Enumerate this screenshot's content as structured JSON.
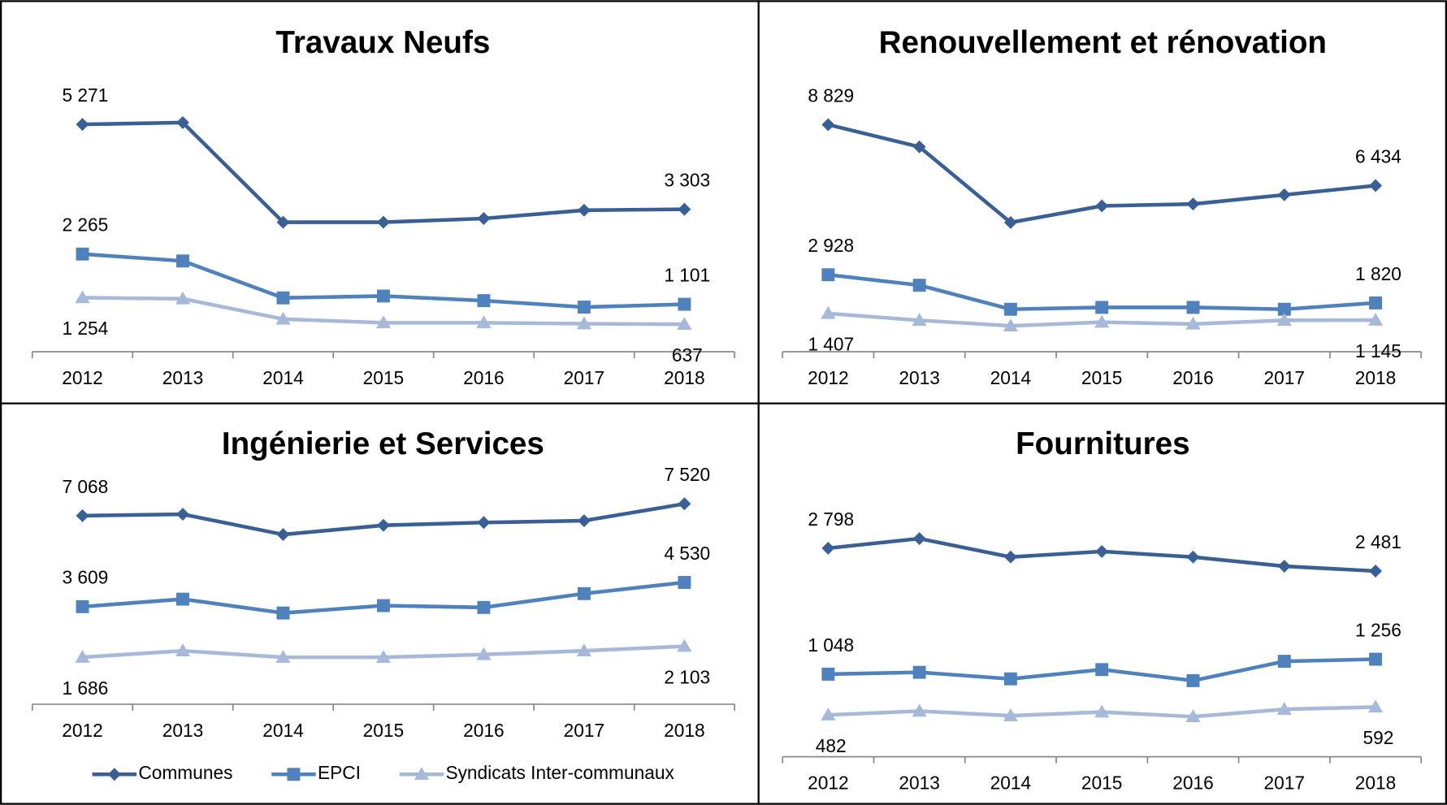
{
  "chart_data": [
    {
      "type": "line",
      "title": "Travaux Neufs",
      "categories": [
        "2012",
        "2013",
        "2014",
        "2015",
        "2016",
        "2017",
        "2018"
      ],
      "ylim": [
        0,
        6000
      ],
      "series": [
        {
          "name": "Communes",
          "color": "#3a5f95",
          "marker": "diamond",
          "values": [
            5271,
            5313,
            3003,
            3003,
            3089,
            3281,
            3303
          ],
          "value_labels": [
            "5 271",
            null,
            null,
            null,
            null,
            null,
            "3 303"
          ]
        },
        {
          "name": "EPCI",
          "color": "#4f81bd",
          "marker": "square",
          "values": [
            2265,
            2105,
            1249,
            1292,
            1185,
            1035,
            1101
          ],
          "value_labels": [
            "2 265",
            null,
            null,
            null,
            null,
            null,
            "1 101"
          ]
        },
        {
          "name": "Syndicats Inter-communaux",
          "color": "#a7b9d9",
          "marker": "triangle",
          "values": [
            1254,
            1228,
            757,
            672,
            672,
            650,
            637
          ],
          "value_labels": [
            "1 254",
            null,
            null,
            null,
            null,
            null,
            "637"
          ]
        }
      ]
    },
    {
      "type": "line",
      "title": "Renouvellement et rénovation",
      "categories": [
        "2012",
        "2013",
        "2014",
        "2015",
        "2016",
        "2017",
        "2018"
      ],
      "ylim": [
        -100,
        10000
      ],
      "series": [
        {
          "name": "Communes",
          "color": "#3a5f95",
          "marker": "diamond",
          "values": [
            8829,
            7957,
            4982,
            5635,
            5708,
            6070,
            6434
          ],
          "value_labels": [
            "8 829",
            null,
            null,
            null,
            null,
            null,
            "6 434"
          ]
        },
        {
          "name": "EPCI",
          "color": "#4f81bd",
          "marker": "square",
          "values": [
            2928,
            2515,
            1571,
            1644,
            1644,
            1571,
            1820
          ],
          "value_labels": [
            "2 928",
            null,
            null,
            null,
            null,
            null,
            "1 820"
          ]
        },
        {
          "name": "Syndicats Inter-communaux",
          "color": "#a7b9d9",
          "marker": "triangle",
          "values": [
            1407,
            1136,
            918,
            1063,
            991,
            1136,
            1145
          ],
          "value_labels": [
            "1 407",
            null,
            null,
            null,
            null,
            null,
            "1 145"
          ]
        }
      ]
    },
    {
      "type": "line",
      "title": "Ingénierie et Services",
      "categories": [
        "2012",
        "2013",
        "2014",
        "2015",
        "2016",
        "2017",
        "2018"
      ],
      "ylim": [
        -100,
        9000
      ],
      "legend": "bottom",
      "series": [
        {
          "name": "Communes",
          "color": "#3a5f95",
          "marker": "diamond",
          "values": [
            7068,
            7123,
            6351,
            6702,
            6807,
            6877,
            7520
          ],
          "value_labels": [
            "7 068",
            null,
            null,
            null,
            null,
            null,
            "7 520"
          ]
        },
        {
          "name": "EPCI",
          "color": "#4f81bd",
          "marker": "square",
          "values": [
            3609,
            3895,
            3368,
            3649,
            3579,
            4105,
            4530
          ],
          "value_labels": [
            "3 609",
            null,
            null,
            null,
            null,
            null,
            "4 530"
          ]
        },
        {
          "name": "Syndicats Inter-communaux",
          "color": "#a7b9d9",
          "marker": "triangle",
          "values": [
            1686,
            1930,
            1684,
            1684,
            1789,
            1930,
            2103
          ],
          "value_labels": [
            "1 686",
            null,
            null,
            null,
            null,
            null,
            "2 103"
          ]
        }
      ]
    },
    {
      "type": "line",
      "title": "Fournitures",
      "categories": [
        "2012",
        "2013",
        "2014",
        "2015",
        "2016",
        "2017",
        "2018"
      ],
      "ylim": [
        -100,
        3000
      ],
      "series": [
        {
          "name": "Communes",
          "color": "#3a5f95",
          "marker": "diamond",
          "values": [
            2798,
            2932,
            2676,
            2753,
            2676,
            2548,
            2481
          ],
          "value_labels": [
            "2 798",
            null,
            null,
            null,
            null,
            null,
            "2 481"
          ]
        },
        {
          "name": "EPCI",
          "color": "#4f81bd",
          "marker": "square",
          "values": [
            1048,
            1074,
            983,
            1112,
            958,
            1227,
            1256
          ],
          "value_labels": [
            "1 048",
            null,
            null,
            null,
            null,
            null,
            "1 256"
          ]
        },
        {
          "name": "Syndicats Inter-communaux",
          "color": "#a7b9d9",
          "marker": "triangle",
          "values": [
            482,
            535,
            471,
            522,
            458,
            560,
            592
          ],
          "value_labels": [
            "482",
            null,
            null,
            null,
            null,
            null,
            "592"
          ]
        }
      ]
    }
  ]
}
